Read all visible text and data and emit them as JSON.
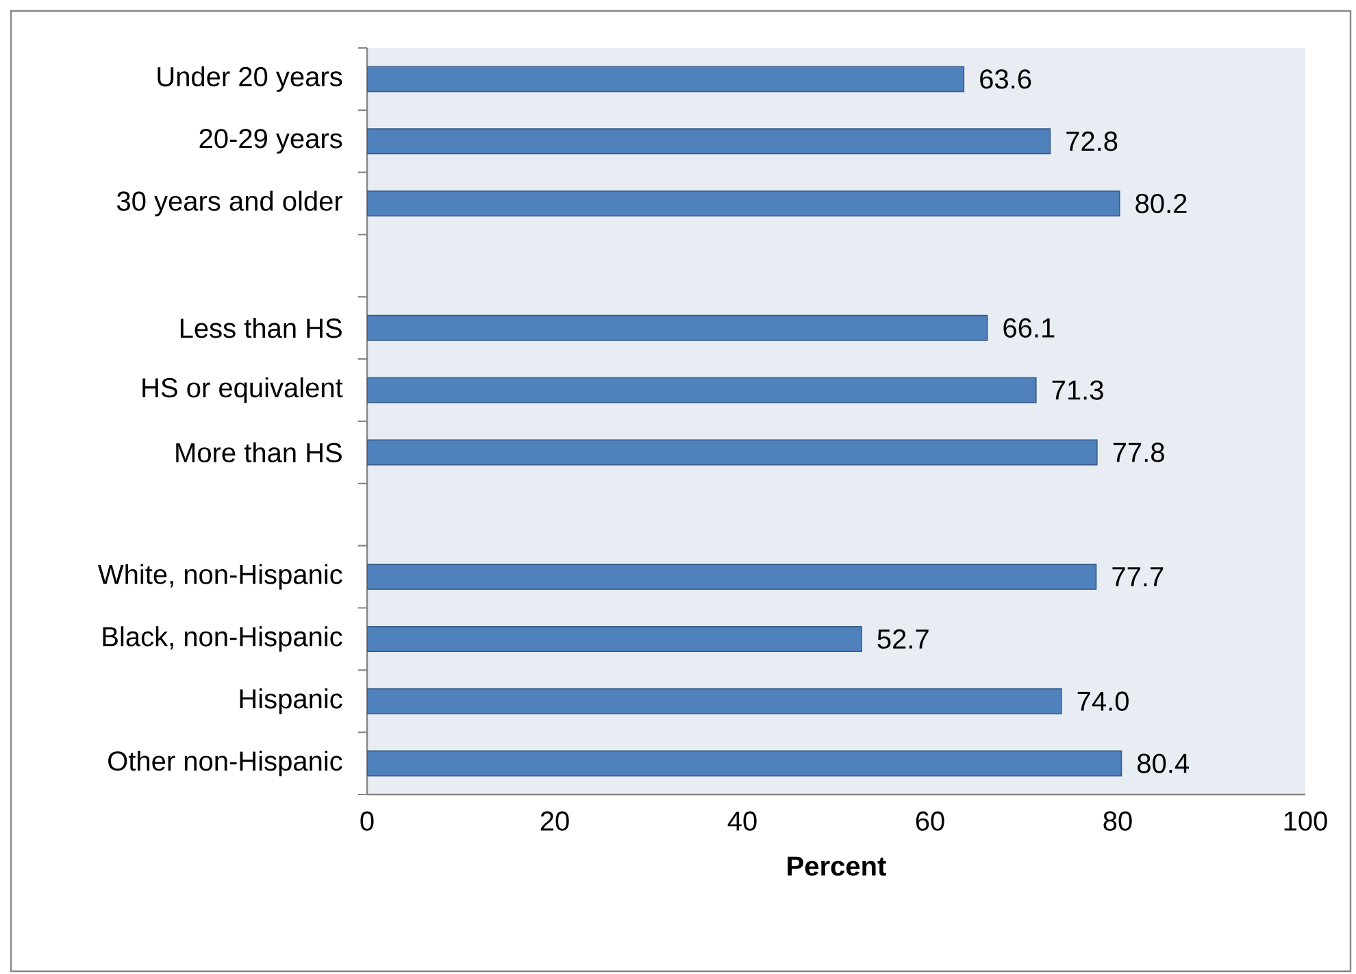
{
  "chart_data": {
    "type": "bar",
    "orientation": "horizontal",
    "categories": [
      "Under 20 years",
      "20-29 years",
      "30 years and older",
      null,
      "Less than HS",
      "HS or equivalent",
      "More than HS",
      null,
      "White, non-Hispanic",
      "Black, non-Hispanic",
      "Hispanic",
      "Other non-Hispanic"
    ],
    "values": [
      63.6,
      72.8,
      80.2,
      null,
      66.1,
      71.3,
      77.8,
      null,
      77.7,
      52.7,
      74.0,
      80.4
    ],
    "color": "#4f81bd",
    "xlabel": "Percent",
    "xlim": [
      0,
      100
    ],
    "xticks": [
      0,
      20,
      40,
      60,
      80,
      100
    ],
    "value_labels": [
      "63.6",
      "72.8",
      "80.2",
      null,
      "66.1",
      "71.3",
      "77.8",
      null,
      "77.7",
      "52.7",
      "74.0",
      "80.4"
    ],
    "grid": false
  }
}
